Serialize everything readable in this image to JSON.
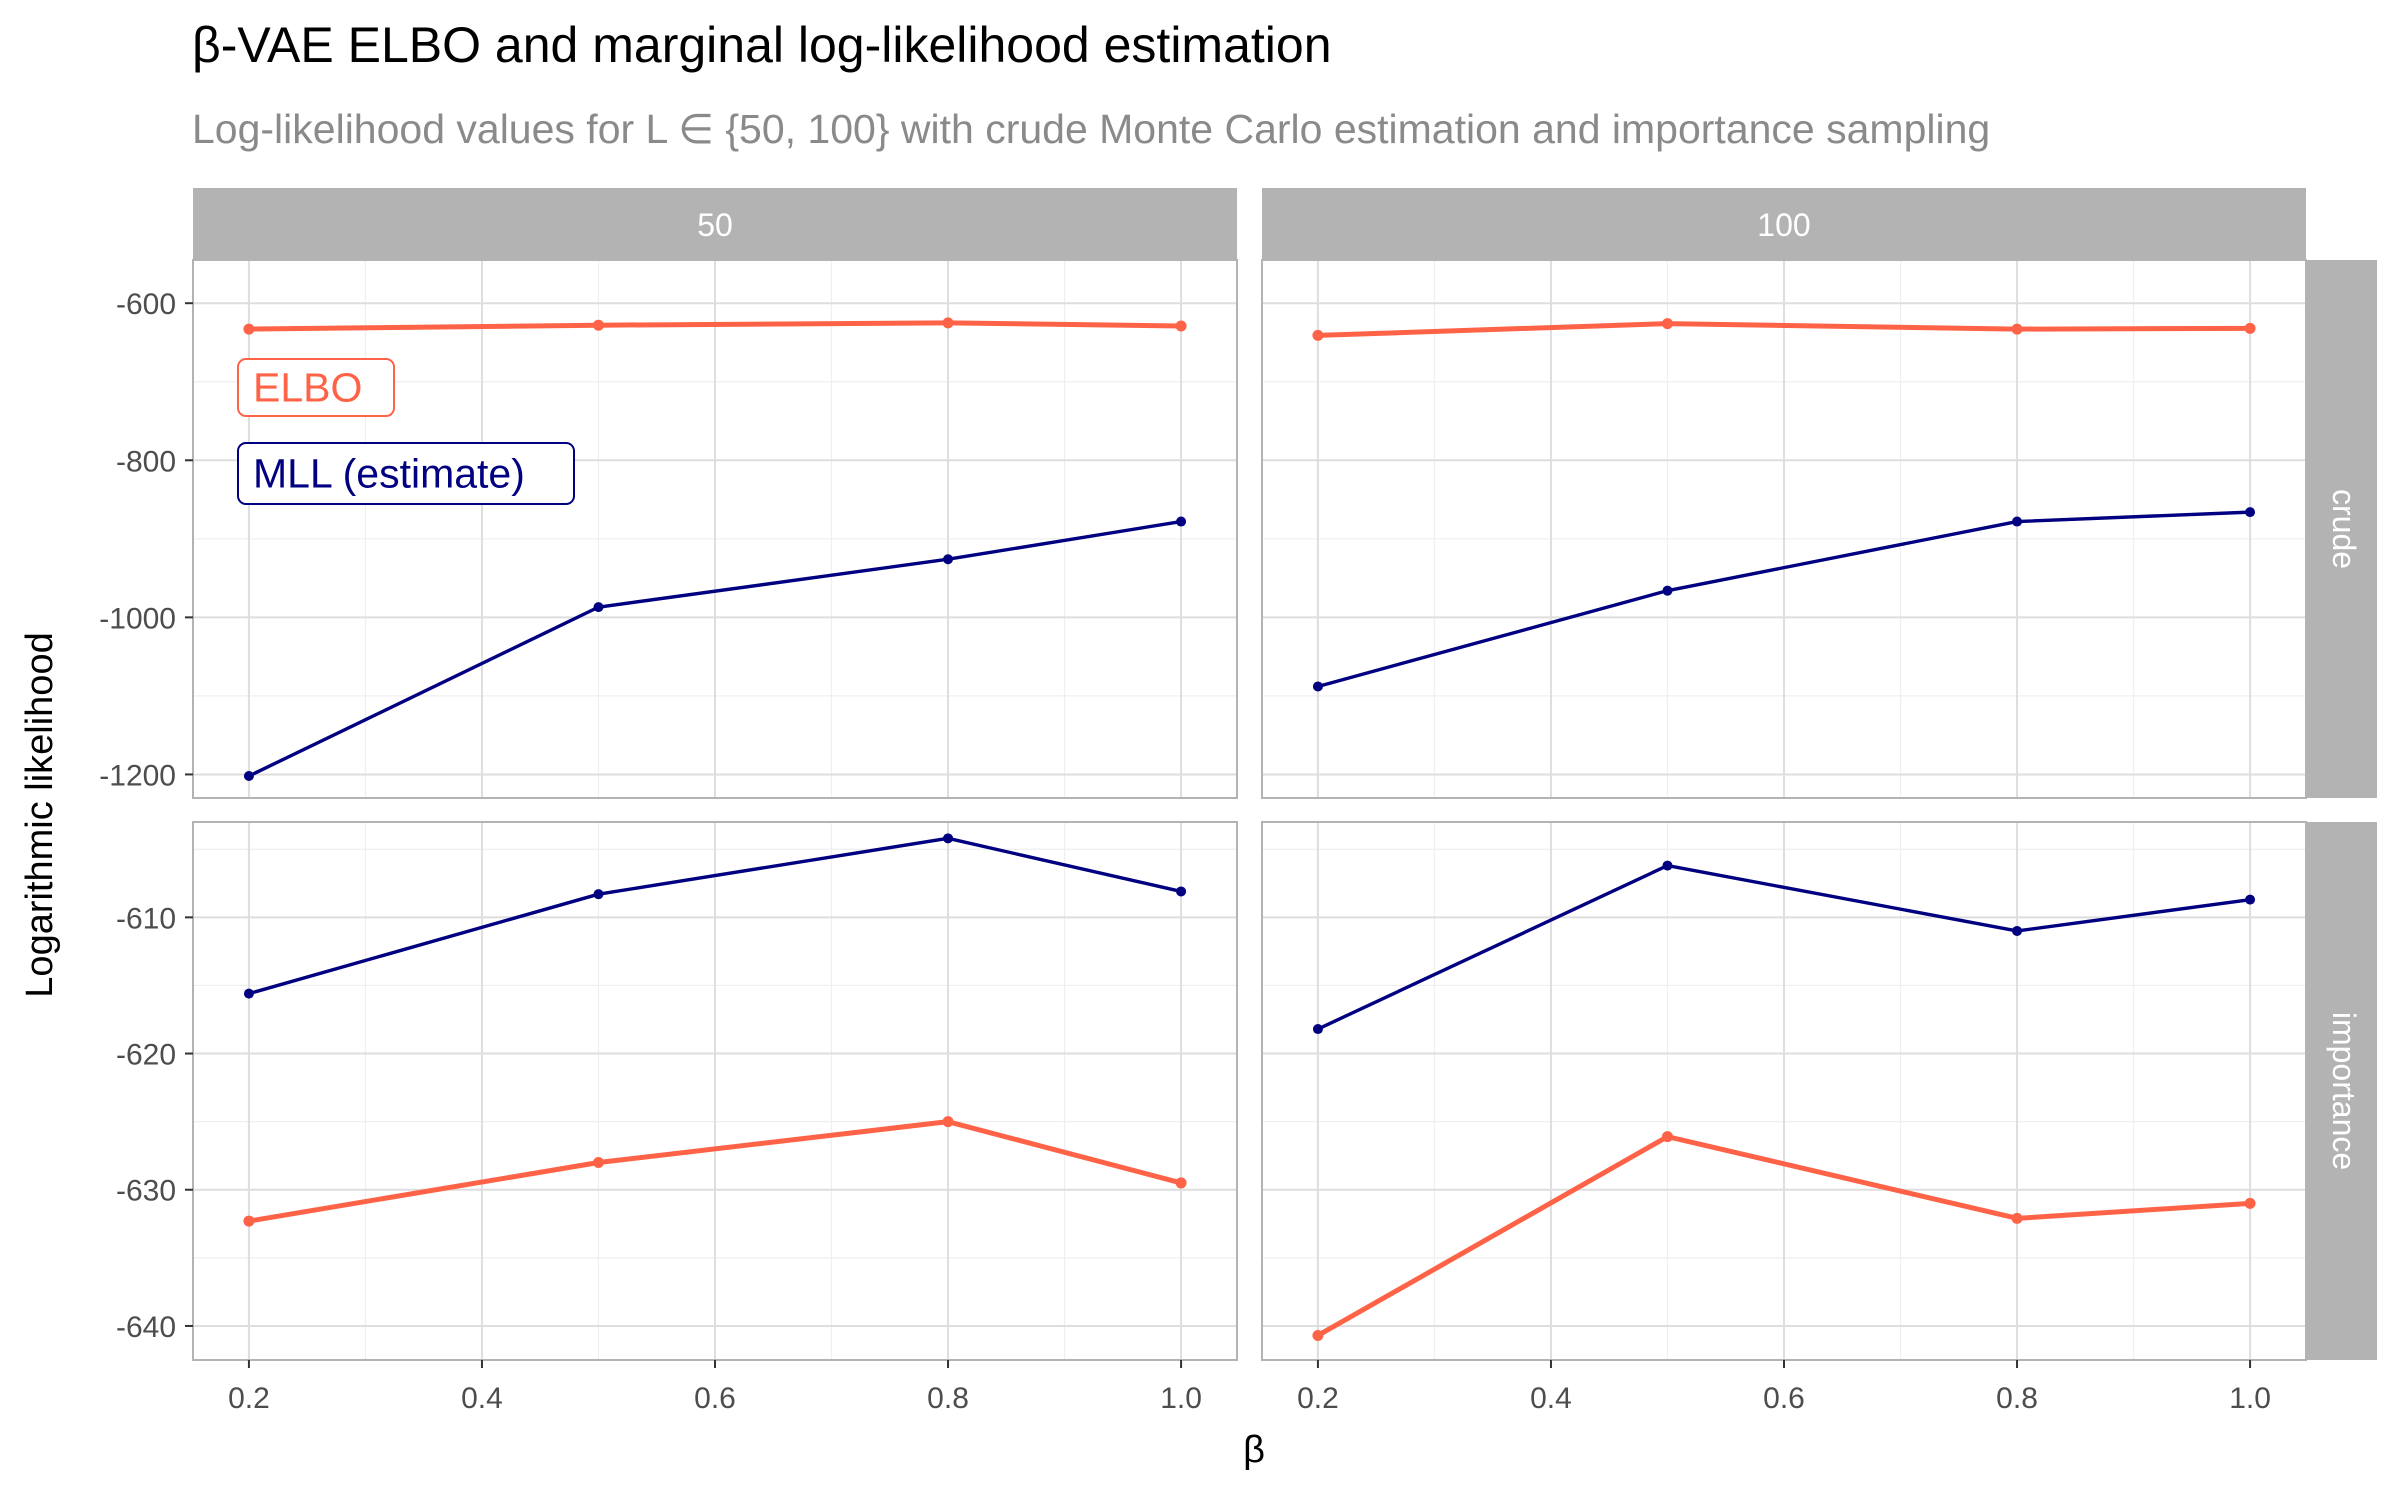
{
  "title": "β-VAE ELBO and marginal log-likelihood estimation",
  "subtitle": "Log-likelihood values for L ∈ {50, 100} with crude Monte Carlo estimation and importance sampling",
  "chart_data": {
    "type": "line",
    "xlabel": "β",
    "ylabel": "Logarithmic likelihood",
    "x": [
      0.2,
      0.5,
      0.8,
      1.0
    ],
    "x_ticks": [
      "0.2",
      "0.4",
      "0.6",
      "0.8",
      "1.0"
    ],
    "col_facets": [
      "50",
      "100"
    ],
    "row_facets": [
      "crude",
      "importance"
    ],
    "colors": {
      "ELBO": "#FF6347",
      "MLL (estimate)": "#000080"
    },
    "legend": {
      "placement": "inside top-left",
      "entries": [
        "ELBO",
        "MLL (estimate)"
      ]
    },
    "grid": true,
    "rows": [
      {
        "name": "crude",
        "ylim": [
          -1230,
          -545
        ],
        "y_ticks": [
          "-600",
          "-800",
          "-1000",
          "-1200"
        ],
        "panels": [
          {
            "col": "50",
            "series": [
              {
                "name": "ELBO",
                "values": [
                  -633,
                  -628,
                  -625,
                  -629
                ]
              },
              {
                "name": "MLL (estimate)",
                "values": [
                  -1202,
                  -987,
                  -926,
                  -878
                ]
              }
            ]
          },
          {
            "col": "100",
            "series": [
              {
                "name": "ELBO",
                "values": [
                  -641,
                  -626,
                  -633,
                  -632
                ]
              },
              {
                "name": "MLL (estimate)",
                "values": [
                  -1088,
                  -966,
                  -878,
                  -866
                ]
              }
            ]
          }
        ]
      },
      {
        "name": "importance",
        "ylim": [
          -642.5,
          -603
        ],
        "y_ticks": [
          "-610",
          "-620",
          "-630",
          "-640"
        ],
        "panels": [
          {
            "col": "50",
            "series": [
              {
                "name": "ELBO",
                "values": [
                  -632.3,
                  -628.0,
                  -625.0,
                  -629.5
                ]
              },
              {
                "name": "MLL (estimate)",
                "values": [
                  -615.6,
                  -608.3,
                  -604.2,
                  -608.1
                ]
              }
            ]
          },
          {
            "col": "100",
            "series": [
              {
                "name": "ELBO",
                "values": [
                  -640.7,
                  -626.1,
                  -632.1,
                  -631.0
                ]
              },
              {
                "name": "MLL (estimate)",
                "values": [
                  -618.2,
                  -606.2,
                  -611.0,
                  -608.7
                ]
              }
            ]
          }
        ]
      }
    ]
  }
}
